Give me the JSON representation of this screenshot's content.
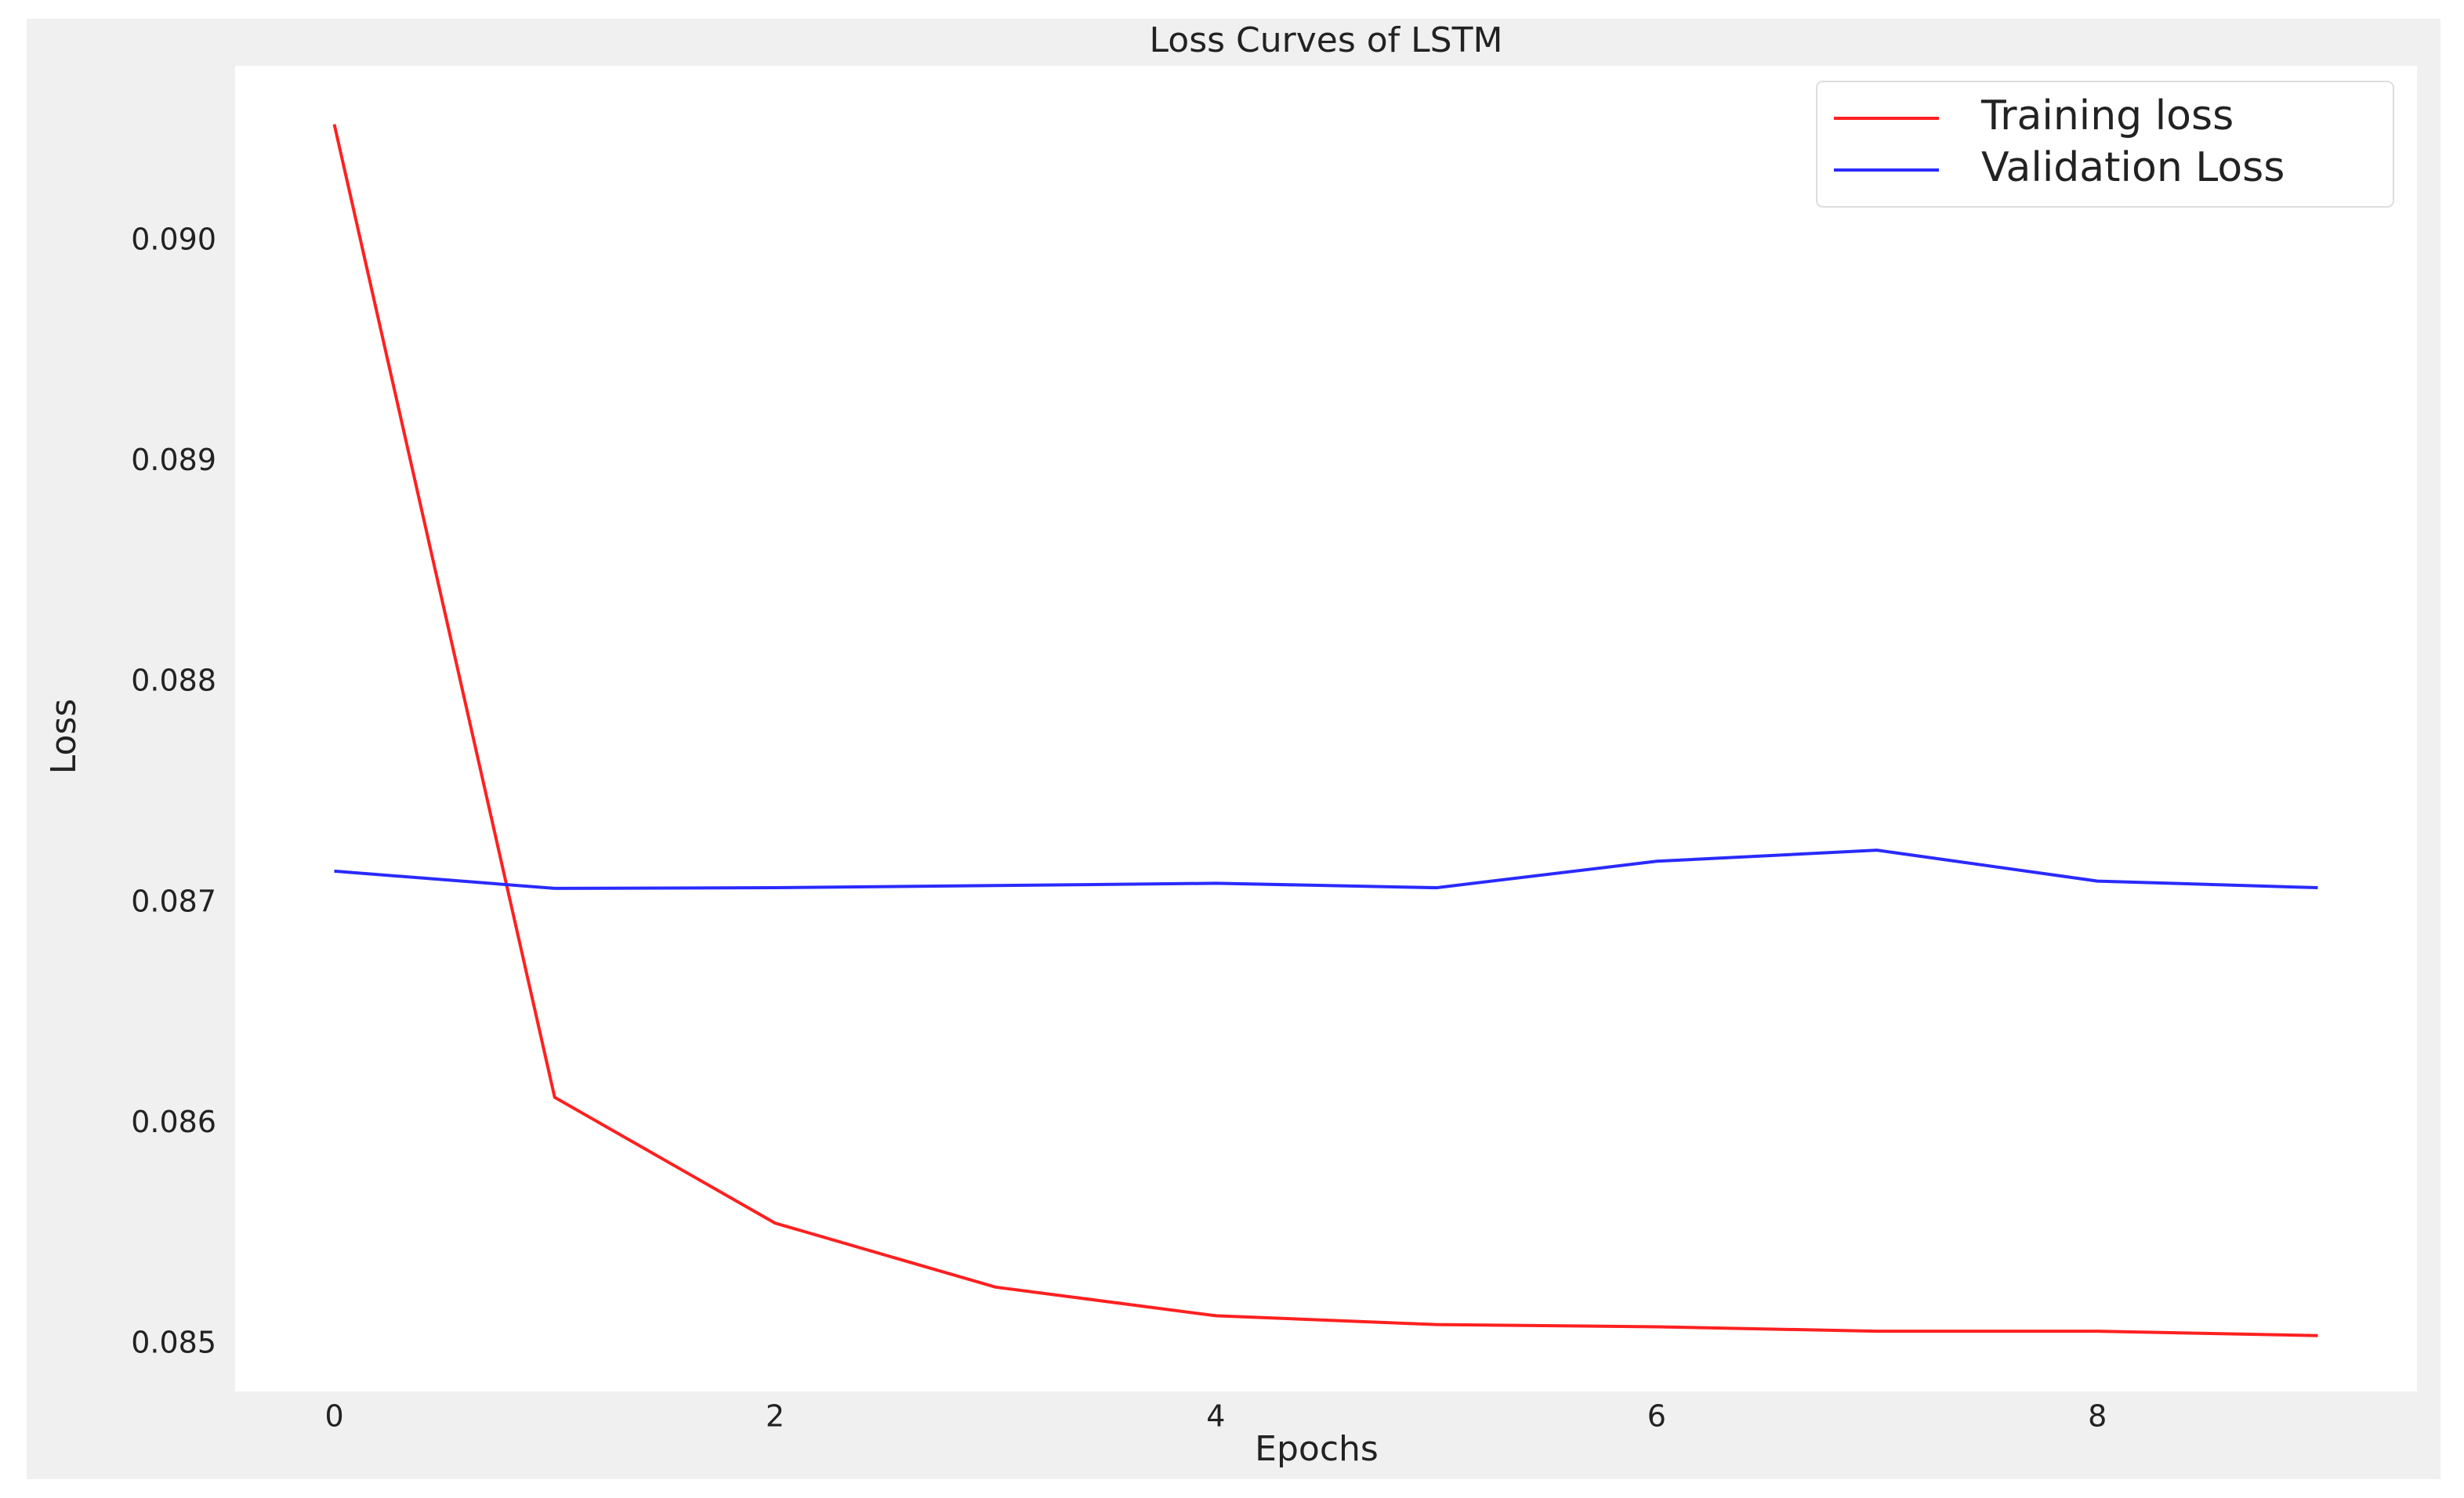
{
  "chart_data": {
    "type": "line",
    "title": "Loss Curves of LSTM",
    "x_label": "Epochs",
    "y_label": "Loss",
    "x": [
      0,
      1,
      2,
      3,
      4,
      5,
      6,
      7,
      8,
      9
    ],
    "series": [
      {
        "name": "Training loss",
        "color": "#ff2020",
        "values": [
          0.09053,
          0.08612,
          0.08555,
          0.08526,
          0.08513,
          0.08509,
          0.08508,
          0.08506,
          0.08506,
          0.08504
        ]
      },
      {
        "name": "Validation Loss",
        "color": "#2a2aff",
        "values": [
          0.087145,
          0.087067,
          0.08707,
          0.08708,
          0.08709,
          0.08707,
          0.08719,
          0.08724,
          0.0871,
          0.08707
        ]
      }
    ],
    "xlim": [
      -0.45,
      9.45
    ],
    "ylim": [
      0.084787,
      0.090795
    ],
    "xticks": [
      0,
      2,
      4,
      6,
      8
    ],
    "yticks": [
      0.085,
      0.086,
      0.087,
      0.088,
      0.089,
      {
        "value": 0.09,
        "label": "0.090"
      }
    ],
    "grid": false,
    "legend": "upper right"
  }
}
